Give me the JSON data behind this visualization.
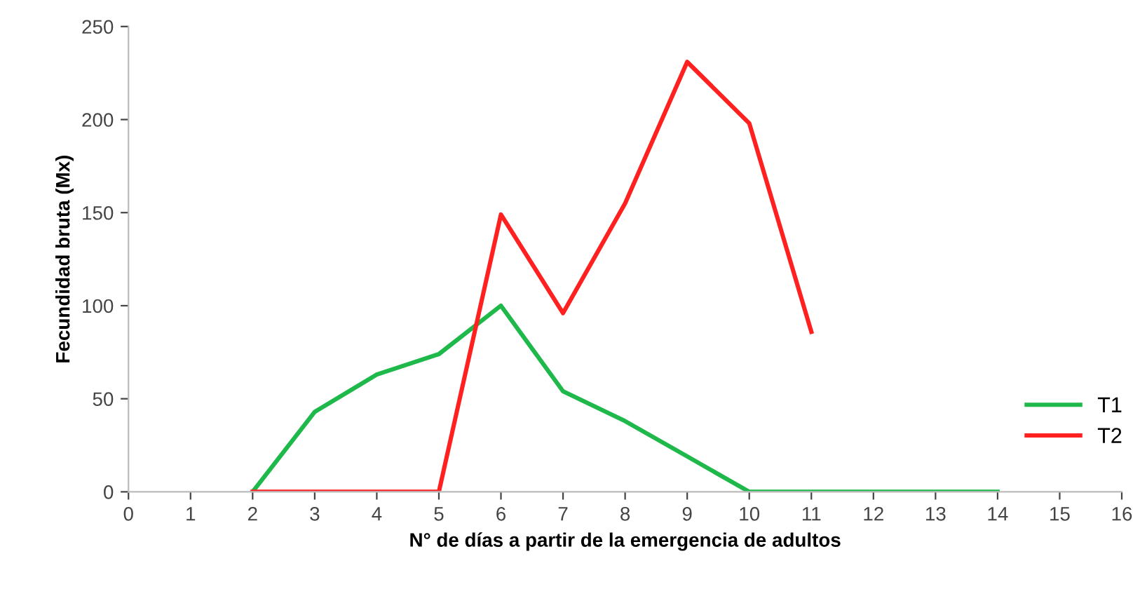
{
  "chart_data": {
    "type": "line",
    "xlabel": "N° de días a partir de la emergencia de adultos",
    "ylabel": "Fecundidad bruta (Mx)",
    "xlim": [
      0,
      16
    ],
    "xticks": [
      0,
      1,
      2,
      3,
      4,
      5,
      6,
      7,
      8,
      9,
      10,
      11,
      12,
      13,
      14,
      15,
      16
    ],
    "ylim": [
      0,
      250
    ],
    "yticks": [
      0,
      50,
      100,
      150,
      200,
      250
    ],
    "grid": false,
    "legend": "right",
    "marker": "none",
    "line_style": "solid",
    "series": [
      {
        "name": "T1",
        "color": "#1fb84a",
        "x": [
          2,
          3,
          4,
          5,
          6,
          7,
          8,
          9,
          10,
          11,
          12,
          13,
          14
        ],
        "values": [
          0,
          43,
          63,
          74,
          100,
          54,
          38,
          19,
          0,
          0,
          0,
          0,
          0
        ]
      },
      {
        "name": "T2",
        "color": "#ff2020",
        "x": [
          2,
          3,
          4,
          5,
          6,
          7,
          8,
          9,
          10,
          11
        ],
        "values": [
          0,
          0,
          0,
          0,
          149,
          96,
          155,
          231,
          198,
          86
        ]
      }
    ]
  }
}
